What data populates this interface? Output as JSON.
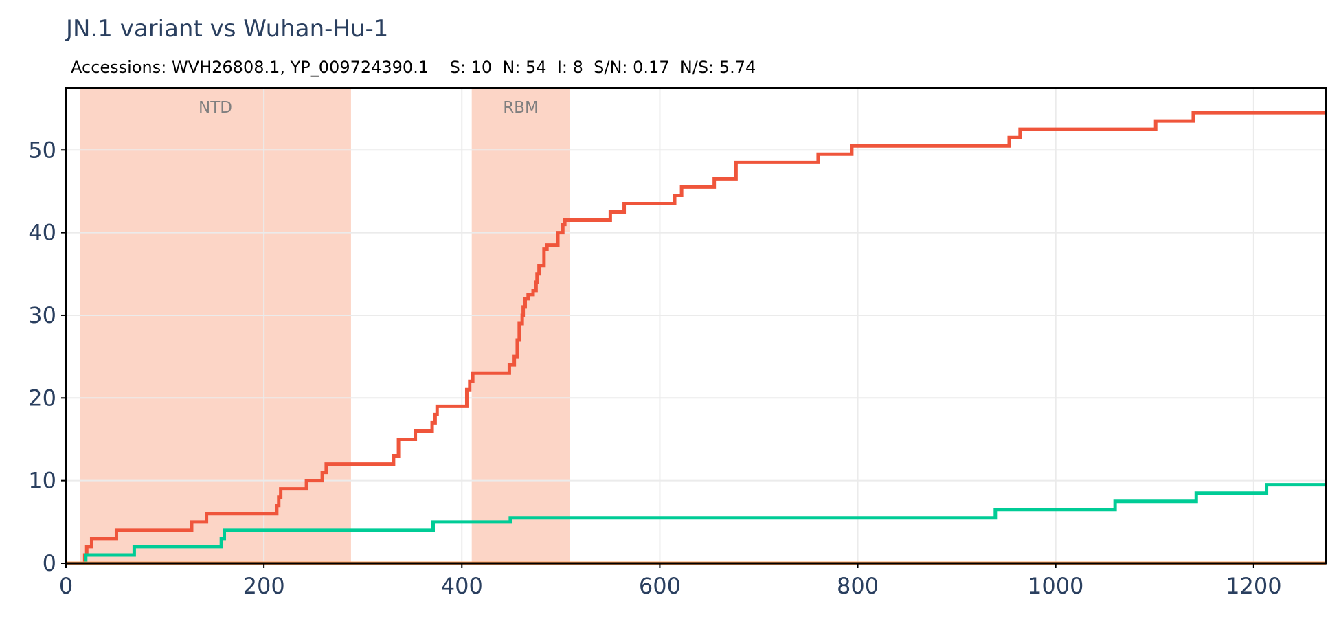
{
  "chart_data": {
    "type": "line",
    "title": "JN.1 variant vs Wuhan-Hu-1",
    "subtitle": "Accessions: WVH26808.1, YP_009724390.1    S: 10  N: 54  I: 8  S/N: 0.17  N/S: 5.74",
    "xlabel": "",
    "ylabel": "",
    "xlim": [
      0,
      1273
    ],
    "ylim": [
      0,
      57.5
    ],
    "x_ticks": [
      0,
      200,
      400,
      600,
      800,
      1000,
      1200
    ],
    "y_ticks": [
      0,
      10,
      20,
      30,
      40,
      50
    ],
    "grid": true,
    "legend": "none",
    "regions": [
      {
        "label": "NTD",
        "x0": 14,
        "x1": 288,
        "color": "#fcd5c6"
      },
      {
        "label": "RBM",
        "x0": 410,
        "x1": 509,
        "color": "#fcd5c6"
      }
    ],
    "series": [
      {
        "color": "#ef553b",
        "x": [
          0,
          17,
          19,
          21,
          26,
          51,
          127,
          142,
          213,
          215,
          217,
          220,
          243,
          259,
          263,
          331,
          336,
          353,
          370,
          373,
          375,
          405,
          408,
          411,
          448,
          453,
          456,
          458,
          461,
          462,
          464,
          467,
          472,
          475,
          476,
          478,
          483,
          486,
          497,
          502,
          504,
          507,
          550,
          564,
          615,
          622,
          655,
          677,
          760,
          794,
          953,
          964,
          1101,
          1139,
          1273
        ],
        "y": [
          0,
          0,
          1,
          2,
          3,
          4,
          5,
          6,
          7,
          8,
          9,
          9,
          10,
          11,
          12,
          13,
          15,
          16,
          17,
          18,
          19,
          21,
          22,
          23,
          24,
          25,
          27,
          29,
          30,
          31,
          32,
          32.5,
          33,
          34,
          35,
          36,
          38,
          38.5,
          40,
          41,
          41.5,
          41.5,
          42.5,
          43.5,
          44.5,
          45.5,
          46.5,
          48.5,
          49.5,
          50.5,
          51.5,
          52.5,
          53.5,
          54.5,
          54.5
        ]
      },
      {
        "color": "#00cc96",
        "x": [
          0,
          18,
          20,
          69,
          157,
          160,
          371,
          449,
          939,
          1060,
          1142,
          1213,
          1273
        ],
        "y": [
          0,
          0,
          1,
          2,
          3,
          4,
          5,
          5.5,
          6.5,
          7.5,
          8.5,
          9.5,
          9.5
        ]
      },
      {
        "color": "#ffa15a",
        "x": [
          0,
          1273
        ],
        "y": [
          0,
          0
        ]
      }
    ]
  }
}
